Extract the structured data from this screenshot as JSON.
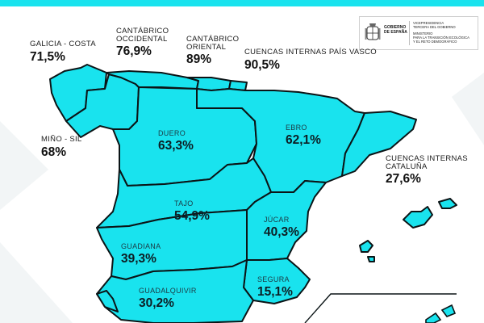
{
  "logo": {
    "gov_line1": "GOBIERNO",
    "gov_line2": "DE ESPAÑA",
    "min_line1": "VICEPRESIDENCIA",
    "min_line2": "TERCERA DEL GOBIERNO",
    "min_line3": "MINISTERIO",
    "min_line4": "PARA LA TRANSICIÓN ECOLÓGICA",
    "min_line5": "Y EL RETO DEMOGRÁFICO"
  },
  "colors": {
    "accent": "#19e3ee",
    "region_fill": "#19e3ee",
    "region_stroke": "#0b1416"
  },
  "basins": [
    {
      "id": "galicia-costa",
      "name": "GALICIA - COSTA",
      "value": "71,5%"
    },
    {
      "id": "cantabrico-occidental",
      "name": "CANTÁBRICO",
      "name2": "OCCIDENTAL",
      "value": "76,9%"
    },
    {
      "id": "cantabrico-oriental",
      "name": "CANTÁBRICO",
      "name2": "ORIENTAL",
      "value": "89%"
    },
    {
      "id": "cuencas-internas-pais-vasco",
      "name": "CUENCAS INTERNAS PAÍS VASCO",
      "value": "90,5%"
    },
    {
      "id": "mino-sil",
      "name": "MIÑO - SIL",
      "value": "68%"
    },
    {
      "id": "duero",
      "name": "DUERO",
      "value": "63,3%"
    },
    {
      "id": "ebro",
      "name": "EBRO",
      "value": "62,1%"
    },
    {
      "id": "cuencas-internas-cataluna",
      "name": "CUENCAS INTERNAS",
      "name2": "CATALUÑA",
      "value": "27,6%"
    },
    {
      "id": "tajo",
      "name": "TAJO",
      "value": "54,9%"
    },
    {
      "id": "jucar",
      "name": "JÚCAR",
      "value": "40,3%"
    },
    {
      "id": "guadiana",
      "name": "GUADIANA",
      "value": "39,3%"
    },
    {
      "id": "segura",
      "name": "SEGURA",
      "value": "15,1%"
    },
    {
      "id": "guadalquivir",
      "name": "GUADALQUIVIR",
      "value": "30,2%"
    }
  ]
}
